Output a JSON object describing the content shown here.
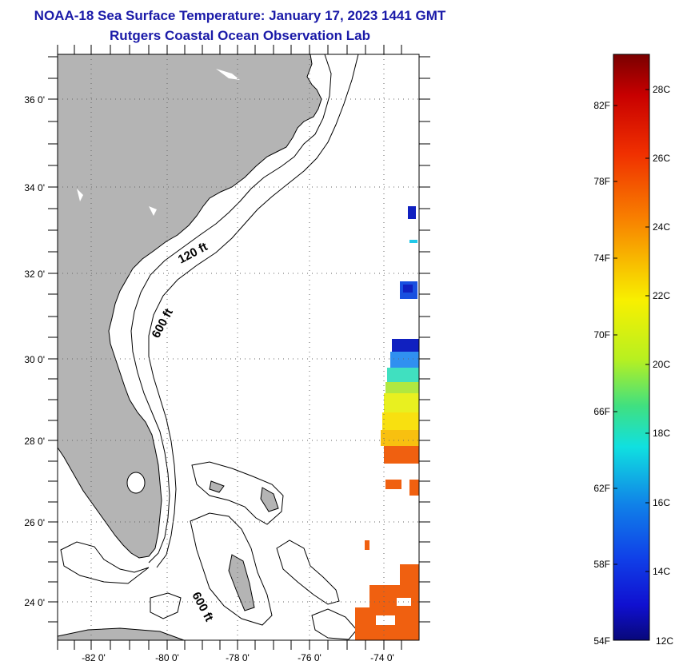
{
  "header": {
    "title": "NOAA-18 Sea Surface Temperature:  January 17, 2023 1441 GMT",
    "subtitle": "Rutgers Coastal Ocean Observation Lab"
  },
  "map": {
    "lat_labels": [
      "36 0'",
      "34 0'",
      "32 0'",
      "30 0'",
      "28 0'",
      "26 0'",
      "24 0'"
    ],
    "lon_labels": [
      "-82 0'",
      "-80 0'",
      "-78 0'",
      "-76 0'",
      "-74 0'"
    ],
    "contour_labels": [
      "120 ft",
      "600 ft",
      "600 ft"
    ],
    "colors": {
      "land": "#b4b4b4",
      "ocean": "#ffffff",
      "title": "#1a1aa8"
    }
  },
  "colorbar": {
    "fahrenheit": [
      "82F",
      "78F",
      "74F",
      "70F",
      "66F",
      "62F",
      "58F",
      "54F"
    ],
    "celsius": [
      "28C",
      "26C",
      "24C",
      "22C",
      "20C",
      "18C",
      "16C",
      "14C",
      "12C"
    ]
  }
}
